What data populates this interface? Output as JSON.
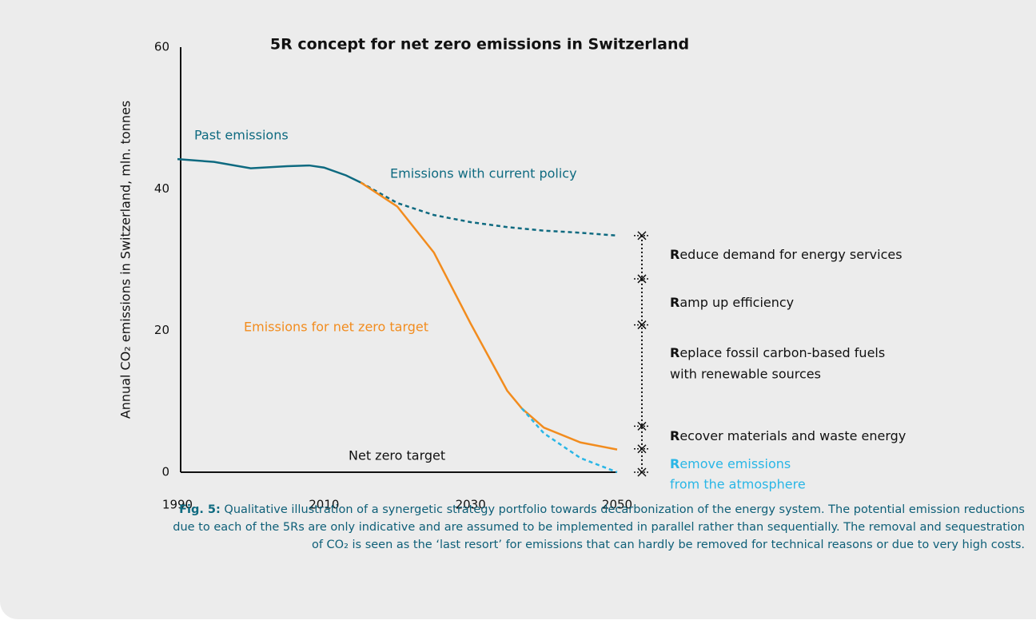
{
  "chart_data": {
    "type": "line",
    "title": "5R concept for net zero emissions in Switzerland",
    "y_label": "Annual CO₂ emissions in Switzerland, mln. tonnes",
    "xlim": [
      1990,
      2050
    ],
    "xticks": [
      1990,
      2010,
      2030,
      2050
    ],
    "ylim": [
      0,
      60
    ],
    "yticks": [
      0,
      20,
      40,
      60
    ],
    "series": [
      {
        "name": "Past emissions",
        "color": "#0e6a80",
        "dash": false,
        "x": [
          1990,
          1995,
          2000,
          2005,
          2008,
          2010,
          2013,
          2015
        ],
        "values": [
          44.2,
          43.8,
          42.9,
          43.2,
          43.3,
          43.0,
          41.9,
          40.9
        ]
      },
      {
        "name": "Emissions with current policy",
        "color": "#0e6a80",
        "dash": true,
        "x": [
          2015,
          2020,
          2025,
          2030,
          2035,
          2040,
          2045,
          2050
        ],
        "values": [
          40.9,
          38.0,
          36.3,
          35.3,
          34.6,
          34.1,
          33.8,
          33.4
        ]
      },
      {
        "name": "Emissions for net zero target",
        "color": "#f28c1e",
        "dash": false,
        "x": [
          2015,
          2020,
          2025,
          2030,
          2035,
          2037,
          2040,
          2045,
          2050
        ],
        "values": [
          40.9,
          37.5,
          31.0,
          21.0,
          11.5,
          9.0,
          6.3,
          4.2,
          3.2
        ]
      },
      {
        "name": "Remove emissions from the atmosphere",
        "color": "#29b6e6",
        "dash": true,
        "x": [
          2037,
          2040,
          2045,
          2050
        ],
        "values": [
          9.0,
          5.5,
          2.0,
          0
        ]
      }
    ],
    "net_zero_label": "Net zero target",
    "levels": [
      33.4,
      27.3,
      20.8,
      6.5,
      3.3,
      0
    ],
    "r_labels": [
      {
        "lines": [
          "Reduce demand for energy services"
        ],
        "color": "#111111"
      },
      {
        "lines": [
          "Ramp up efficiency"
        ],
        "color": "#111111"
      },
      {
        "lines": [
          "Replace fossil carbon-based fuels",
          "with renewable sources"
        ],
        "color": "#111111"
      },
      {
        "lines": [
          "Recover materials and waste energy"
        ],
        "color": "#111111"
      },
      {
        "lines": [
          "Remove emissions",
          "from the atmosphere"
        ],
        "color": "#29b6e6"
      }
    ],
    "caption": {
      "label": "Fig. 5:",
      "lines": [
        " Qualitative illustration of a synergetic strategy portfolio towards decarbonization of the energy system. The potential emission reductions",
        "due to each of the 5Rs are only indicative and are assumed to be implemented in parallel rather than sequentially. The removal and sequestration",
        "of CO₂ is seen as the ‘last resort’ for emissions that can hardly be removed for technical reasons or due to very high costs."
      ]
    }
  }
}
